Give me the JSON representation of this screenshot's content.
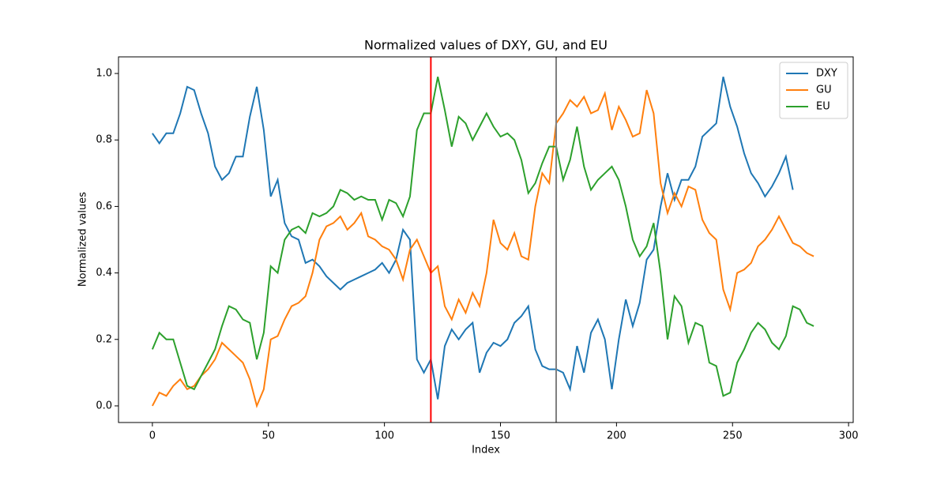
{
  "chart_data": {
    "type": "line",
    "title": "Normalized values of DXY, GU, and EU",
    "xlabel": "Index",
    "ylabel": "Normalized values",
    "x": [
      0,
      3,
      6,
      9,
      12,
      15,
      18,
      21,
      24,
      27,
      30,
      33,
      36,
      39,
      42,
      45,
      48,
      51,
      54,
      57,
      60,
      63,
      66,
      69,
      72,
      75,
      78,
      81,
      84,
      87,
      90,
      93,
      96,
      99,
      102,
      105,
      108,
      111,
      114,
      117,
      120,
      123,
      126,
      129,
      132,
      135,
      138,
      141,
      144,
      147,
      150,
      153,
      156,
      159,
      162,
      165,
      168,
      171,
      174,
      177,
      180,
      183,
      186,
      189,
      192,
      195,
      198,
      201,
      204,
      207,
      210,
      213,
      216,
      219,
      222,
      225,
      228,
      231,
      234,
      237,
      240,
      243,
      246,
      249,
      252,
      255,
      258,
      261,
      264,
      267,
      270,
      273,
      276,
      279,
      282,
      285
    ],
    "series": [
      {
        "name": "DXY",
        "color": "#1f77b4",
        "values": [
          0.82,
          0.79,
          0.82,
          0.82,
          0.88,
          0.96,
          0.95,
          0.88,
          0.82,
          0.72,
          0.68,
          0.7,
          0.75,
          0.75,
          0.87,
          0.96,
          0.83,
          0.63,
          0.68,
          0.55,
          0.51,
          0.5,
          0.43,
          0.44,
          0.42,
          0.39,
          0.37,
          0.35,
          0.37,
          0.38,
          0.39,
          0.4,
          0.41,
          0.43,
          0.4,
          0.44,
          0.53,
          0.5,
          0.14,
          0.1,
          0.14,
          0.02,
          0.18,
          0.23,
          0.2,
          0.23,
          0.25,
          0.1,
          0.16,
          0.19,
          0.18,
          0.2,
          0.25,
          0.27,
          0.3,
          0.17,
          0.12,
          0.11,
          0.11,
          0.1,
          0.05,
          0.18,
          0.1,
          0.22,
          0.26,
          0.2,
          0.05,
          0.2,
          0.32,
          0.24,
          0.31,
          0.44,
          0.47,
          0.6,
          0.7,
          0.62,
          0.68,
          0.68,
          0.72,
          0.81,
          0.83,
          0.85,
          0.99,
          0.9,
          0.84,
          0.76,
          0.7,
          0.67,
          0.63,
          0.66,
          0.7,
          0.75,
          0.65,
          null,
          null,
          null
        ]
      },
      {
        "name": "GU",
        "color": "#ff7f0e",
        "values": [
          0.0,
          0.04,
          0.03,
          0.06,
          0.08,
          0.05,
          0.06,
          0.09,
          0.11,
          0.14,
          0.19,
          0.17,
          0.15,
          0.13,
          0.08,
          0.0,
          0.05,
          0.2,
          0.21,
          0.26,
          0.3,
          0.31,
          0.33,
          0.4,
          0.5,
          0.54,
          0.55,
          0.57,
          0.53,
          0.55,
          0.58,
          0.51,
          0.5,
          0.48,
          0.47,
          0.44,
          0.38,
          0.47,
          0.5,
          0.45,
          0.4,
          0.42,
          0.3,
          0.26,
          0.32,
          0.28,
          0.34,
          0.3,
          0.4,
          0.56,
          0.49,
          0.47,
          0.52,
          0.45,
          0.44,
          0.6,
          0.7,
          0.67,
          0.85,
          0.88,
          0.92,
          0.9,
          0.93,
          0.88,
          0.89,
          0.94,
          0.83,
          0.9,
          0.86,
          0.81,
          0.82,
          0.95,
          0.88,
          0.67,
          0.58,
          0.64,
          0.6,
          0.66,
          0.65,
          0.56,
          0.52,
          0.5,
          0.35,
          0.29,
          0.4,
          0.41,
          0.43,
          0.48,
          0.5,
          0.53,
          0.57,
          0.53,
          0.49,
          0.48,
          0.46,
          0.45
        ]
      },
      {
        "name": "EU",
        "color": "#2ca02c",
        "values": [
          0.17,
          0.22,
          0.2,
          0.2,
          0.13,
          0.06,
          0.05,
          0.09,
          0.13,
          0.17,
          0.24,
          0.3,
          0.29,
          0.26,
          0.25,
          0.14,
          0.22,
          0.42,
          0.4,
          0.5,
          0.53,
          0.54,
          0.52,
          0.58,
          0.57,
          0.58,
          0.6,
          0.65,
          0.64,
          0.62,
          0.63,
          0.62,
          0.62,
          0.56,
          0.62,
          0.61,
          0.57,
          0.63,
          0.83,
          0.88,
          0.88,
          0.99,
          0.89,
          0.78,
          0.87,
          0.85,
          0.8,
          0.84,
          0.88,
          0.84,
          0.81,
          0.82,
          0.8,
          0.74,
          0.64,
          0.67,
          0.73,
          0.78,
          0.78,
          0.68,
          0.74,
          0.84,
          0.72,
          0.65,
          0.68,
          0.7,
          0.72,
          0.68,
          0.6,
          0.5,
          0.45,
          0.48,
          0.55,
          0.4,
          0.2,
          0.33,
          0.3,
          0.19,
          0.25,
          0.24,
          0.13,
          0.12,
          0.03,
          0.04,
          0.13,
          0.17,
          0.22,
          0.25,
          0.23,
          0.19,
          0.17,
          0.21,
          0.3,
          0.29,
          0.25,
          0.24
        ]
      }
    ],
    "vlines": [
      {
        "x": 120,
        "color": "red"
      },
      {
        "x": 174,
        "color": "gray"
      }
    ],
    "xlim": [
      -14.6,
      302
    ],
    "ylim": [
      -0.05,
      1.05
    ],
    "xticks": [
      0,
      50,
      100,
      150,
      200,
      250,
      300
    ],
    "yticks": [
      {
        "value": 0,
        "label": "0.0"
      },
      {
        "value": 0.2,
        "label": "0.2"
      },
      {
        "value": 0.4,
        "label": "0.4"
      },
      {
        "value": 0.6,
        "label": "0.6"
      },
      {
        "value": 0.8,
        "label": "0.8"
      },
      {
        "value": 1,
        "label": "1.0"
      }
    ],
    "legend": "upper right"
  }
}
